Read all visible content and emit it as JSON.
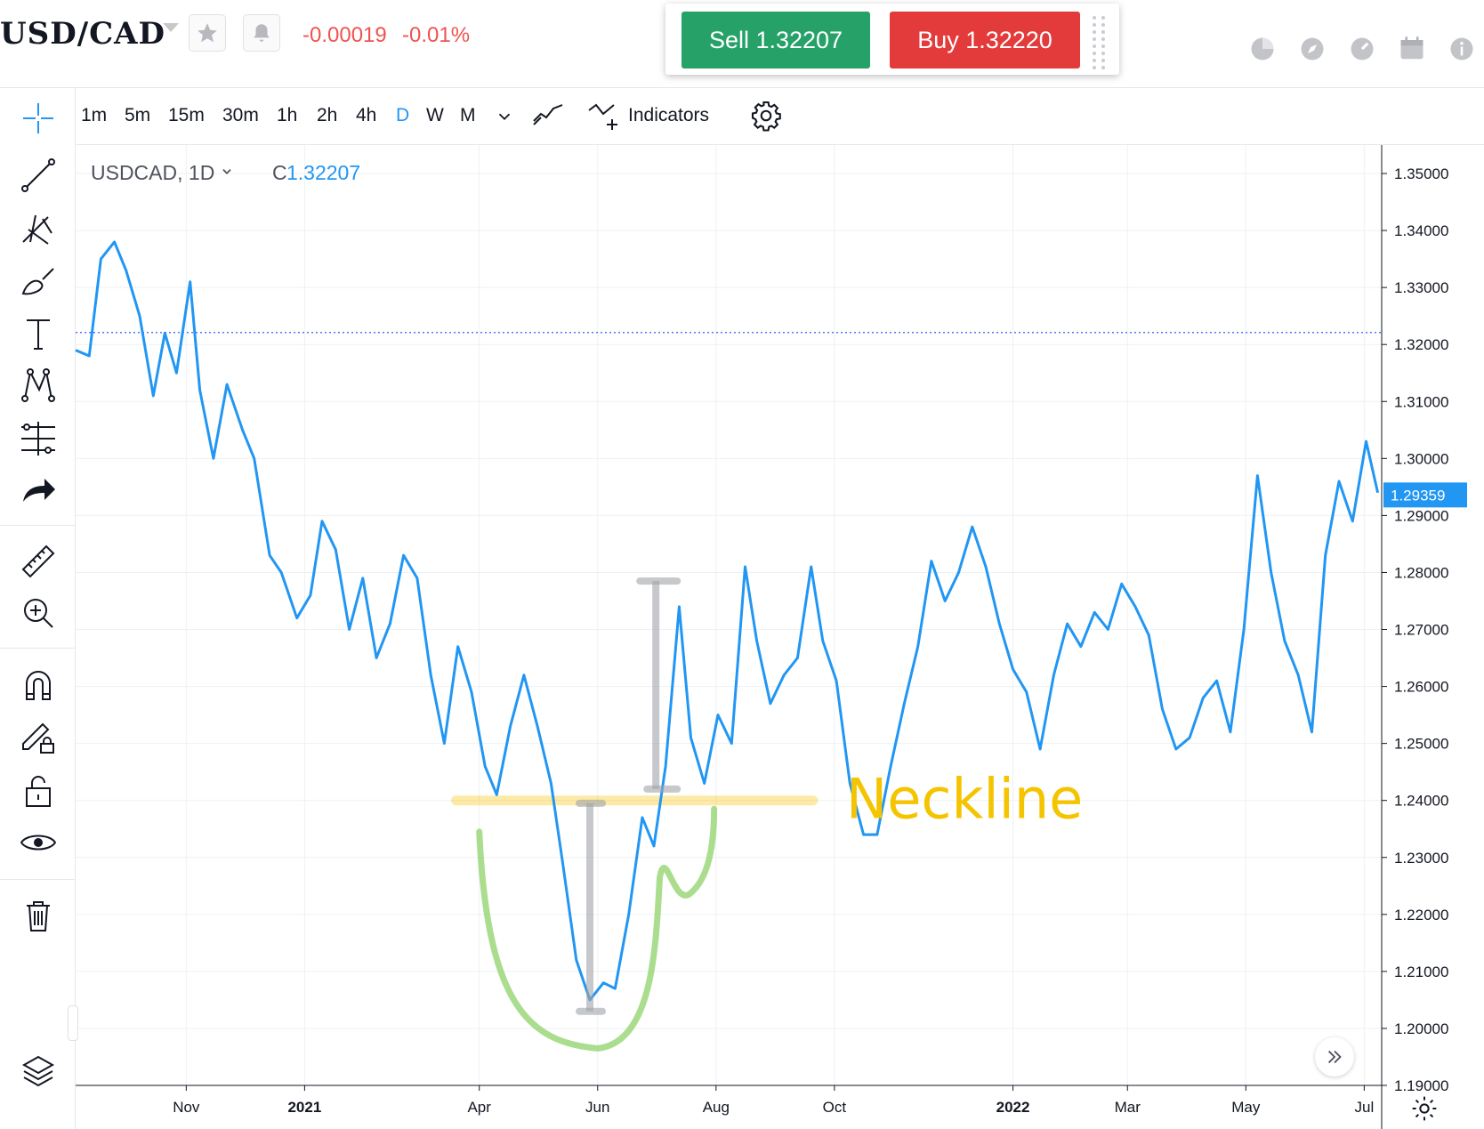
{
  "header": {
    "symbol": "USD/CAD",
    "change_abs": "-0.00019",
    "change_pct": "-0.01%",
    "sell_label": "Sell 1.32207",
    "buy_label": "Buy 1.32220",
    "icons": [
      "star-icon",
      "bell-icon",
      "pie-chart-icon",
      "compass-icon",
      "gauge-icon",
      "calendar-icon",
      "info-icon"
    ]
  },
  "toolbar": {
    "timeframes": [
      "1m",
      "5m",
      "15m",
      "30m",
      "1h",
      "2h",
      "4h",
      "D",
      "W",
      "M"
    ],
    "active_timeframe": "D",
    "indicators_label": "Indicators"
  },
  "left_tools": [
    "crosshair-icon",
    "trend-line-icon",
    "pitchfork-icon",
    "brush-icon",
    "text-icon",
    "pattern-icon",
    "forecast-icon",
    "arrow-icon",
    "ruler-icon",
    "zoom-in-icon",
    "magnet-icon",
    "lock-drawing-icon",
    "unlock-icon",
    "eye-icon",
    "trash-icon",
    "layers-icon"
  ],
  "legend": {
    "symbol": "USDCAD, 1D",
    "close_prefix": "C",
    "close_value": "1.32207"
  },
  "chart_data": {
    "type": "line",
    "colors": {
      "line": "#2196f3",
      "neckline": "#f5c400",
      "cup": "#8fd16a",
      "measure": "#a0a4a8"
    },
    "y_axis": {
      "range": [
        1.19,
        1.355
      ],
      "ticks": [
        "1.35000",
        "1.34000",
        "1.33000",
        "1.32000",
        "1.31000",
        "1.30000",
        "1.29000",
        "1.28000",
        "1.27000",
        "1.26000",
        "1.25000",
        "1.24000",
        "1.23000",
        "1.22000",
        "1.21000",
        "1.20000",
        "1.19000"
      ]
    },
    "x_axis": {
      "range": [
        "2020-09-05",
        "2022-07-10"
      ],
      "ticks": [
        {
          "label": "Nov",
          "date": "2020-11-01",
          "bold": false
        },
        {
          "label": "2021",
          "date": "2021-01-01",
          "bold": true
        },
        {
          "label": "Apr",
          "date": "2021-04-01",
          "bold": false
        },
        {
          "label": "Jun",
          "date": "2021-06-01",
          "bold": false
        },
        {
          "label": "Aug",
          "date": "2021-08-01",
          "bold": false
        },
        {
          "label": "Oct",
          "date": "2021-10-01",
          "bold": false
        },
        {
          "label": "2022",
          "date": "2022-01-01",
          "bold": true
        },
        {
          "label": "Mar",
          "date": "2022-03-01",
          "bold": false
        },
        {
          "label": "May",
          "date": "2022-05-01",
          "bold": false
        },
        {
          "label": "Jul",
          "date": "2022-07-01",
          "bold": false
        }
      ]
    },
    "current_price_line": 1.3221,
    "last_price_label": "1.29359",
    "last_price": 1.2936,
    "neckline_label": "Neckline",
    "neckline_value": 1.24,
    "series": [
      {
        "points": [
          [
            "2020-09-05",
            1.319
          ],
          [
            "2020-09-12",
            1.318
          ],
          [
            "2020-09-18",
            1.335
          ],
          [
            "2020-09-25",
            1.338
          ],
          [
            "2020-10-01",
            1.333
          ],
          [
            "2020-10-08",
            1.325
          ],
          [
            "2020-10-15",
            1.311
          ],
          [
            "2020-10-21",
            1.322
          ],
          [
            "2020-10-27",
            1.315
          ],
          [
            "2020-11-03",
            1.331
          ],
          [
            "2020-11-08",
            1.312
          ],
          [
            "2020-11-15",
            1.3
          ],
          [
            "2020-11-22",
            1.313
          ],
          [
            "2020-11-30",
            1.305
          ],
          [
            "2020-12-06",
            1.3
          ],
          [
            "2020-12-14",
            1.283
          ],
          [
            "2020-12-20",
            1.28
          ],
          [
            "2020-12-28",
            1.272
          ],
          [
            "2021-01-04",
            1.276
          ],
          [
            "2021-01-10",
            1.289
          ],
          [
            "2021-01-17",
            1.284
          ],
          [
            "2021-01-24",
            1.27
          ],
          [
            "2021-01-31",
            1.279
          ],
          [
            "2021-02-07",
            1.265
          ],
          [
            "2021-02-14",
            1.271
          ],
          [
            "2021-02-21",
            1.283
          ],
          [
            "2021-02-28",
            1.279
          ],
          [
            "2021-03-07",
            1.262
          ],
          [
            "2021-03-14",
            1.25
          ],
          [
            "2021-03-21",
            1.267
          ],
          [
            "2021-03-28",
            1.259
          ],
          [
            "2021-04-04",
            1.246
          ],
          [
            "2021-04-10",
            1.241
          ],
          [
            "2021-04-17",
            1.253
          ],
          [
            "2021-04-24",
            1.262
          ],
          [
            "2021-05-01",
            1.253
          ],
          [
            "2021-05-08",
            1.243
          ],
          [
            "2021-05-14",
            1.229
          ],
          [
            "2021-05-21",
            1.212
          ],
          [
            "2021-05-28",
            1.205
          ],
          [
            "2021-06-04",
            1.208
          ],
          [
            "2021-06-10",
            1.207
          ],
          [
            "2021-06-17",
            1.22
          ],
          [
            "2021-06-24",
            1.237
          ],
          [
            "2021-06-30",
            1.232
          ],
          [
            "2021-07-06",
            1.246
          ],
          [
            "2021-07-13",
            1.274
          ],
          [
            "2021-07-19",
            1.251
          ],
          [
            "2021-07-26",
            1.243
          ],
          [
            "2021-08-02",
            1.255
          ],
          [
            "2021-08-09",
            1.25
          ],
          [
            "2021-08-16",
            1.281
          ],
          [
            "2021-08-22",
            1.268
          ],
          [
            "2021-08-29",
            1.257
          ],
          [
            "2021-09-05",
            1.262
          ],
          [
            "2021-09-12",
            1.265
          ],
          [
            "2021-09-19",
            1.281
          ],
          [
            "2021-09-25",
            1.268
          ],
          [
            "2021-10-02",
            1.261
          ],
          [
            "2021-10-09",
            1.243
          ],
          [
            "2021-10-16",
            1.234
          ],
          [
            "2021-10-23",
            1.234
          ],
          [
            "2021-10-30",
            1.246
          ],
          [
            "2021-11-06",
            1.257
          ],
          [
            "2021-11-13",
            1.267
          ],
          [
            "2021-11-20",
            1.282
          ],
          [
            "2021-11-27",
            1.275
          ],
          [
            "2021-12-04",
            1.28
          ],
          [
            "2021-12-11",
            1.288
          ],
          [
            "2021-12-18",
            1.281
          ],
          [
            "2021-12-25",
            1.271
          ],
          [
            "2022-01-01",
            1.263
          ],
          [
            "2022-01-08",
            1.259
          ],
          [
            "2022-01-15",
            1.249
          ],
          [
            "2022-01-22",
            1.262
          ],
          [
            "2022-01-29",
            1.271
          ],
          [
            "2022-02-05",
            1.267
          ],
          [
            "2022-02-12",
            1.273
          ],
          [
            "2022-02-19",
            1.27
          ],
          [
            "2022-02-26",
            1.278
          ],
          [
            "2022-03-05",
            1.274
          ],
          [
            "2022-03-12",
            1.269
          ],
          [
            "2022-03-19",
            1.256
          ],
          [
            "2022-03-26",
            1.249
          ],
          [
            "2022-04-02",
            1.251
          ],
          [
            "2022-04-09",
            1.258
          ],
          [
            "2022-04-16",
            1.261
          ],
          [
            "2022-04-23",
            1.252
          ],
          [
            "2022-04-30",
            1.27
          ],
          [
            "2022-05-07",
            1.297
          ],
          [
            "2022-05-14",
            1.28
          ],
          [
            "2022-05-21",
            1.268
          ],
          [
            "2022-05-28",
            1.262
          ],
          [
            "2022-06-04",
            1.252
          ],
          [
            "2022-06-11",
            1.283
          ],
          [
            "2022-06-18",
            1.296
          ],
          [
            "2022-06-25",
            1.289
          ],
          [
            "2022-07-02",
            1.303
          ],
          [
            "2022-07-08",
            1.294
          ]
        ]
      }
    ]
  }
}
